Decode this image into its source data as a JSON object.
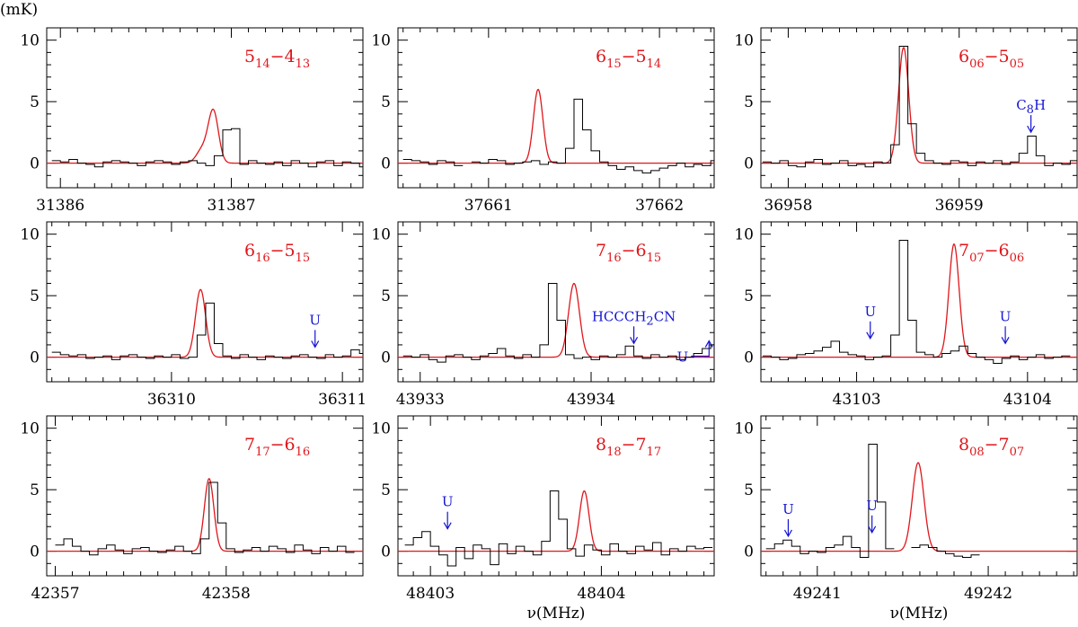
{
  "figure": {
    "yunit_label": "(mK)",
    "xlabel": "ν(MHz)"
  },
  "colors": {
    "observed": "#000000",
    "model": "#e0161b",
    "annotation": "#1414d4",
    "transition_label": "#e0161b",
    "axes": "#000000"
  },
  "chart_data": [
    {
      "type": "line",
      "title": "5_14-4_13",
      "label": {
        "j1": "5",
        "s1": "14",
        "j2": "4",
        "s2": "13"
      },
      "xlim": [
        31385.92,
        31387.77
      ],
      "ylim": [
        -2,
        11
      ],
      "xticks": [
        31386,
        31387
      ],
      "yticks": [
        0,
        5,
        10
      ],
      "xlabel": "",
      "series": [
        {
          "name": "observed",
          "style": "step",
          "start": 31385.95,
          "step": 0.05,
          "values": [
            0.2,
            0.1,
            0.3,
            0.0,
            -0.1,
            -0.3,
            0.1,
            0.2,
            0.1,
            0.0,
            -0.2,
            0.1,
            0.2,
            0.1,
            -0.1,
            0.1,
            0.2,
            0.0,
            -0.2,
            0.6,
            2.7,
            2.8,
            -0.1,
            0.2,
            0.0,
            -0.1,
            0.1,
            -0.2,
            0.2,
            0.0,
            -0.3,
            0.1,
            0.2,
            -0.2,
            0.1,
            0.0,
            -0.3,
            0.1,
            -0.1,
            -0.2
          ]
        },
        {
          "name": "model",
          "style": "line",
          "peaks": [
            {
              "center": 31386.895,
              "height": 4.2,
              "fwhm": 0.07
            },
            {
              "center": 31386.83,
              "height": 1.1,
              "fwhm": 0.08
            }
          ],
          "baseline": 0
        }
      ],
      "annotations": []
    },
    {
      "type": "line",
      "title": "6_15-5_14",
      "label": {
        "j1": "6",
        "s1": "15",
        "j2": "5",
        "s2": "14"
      },
      "xlim": [
        37660.47,
        37662.32
      ],
      "ylim": [
        -2,
        11
      ],
      "xticks": [
        37661,
        37662
      ],
      "yticks": [
        0,
        5,
        10
      ],
      "xlabel": "",
      "series": [
        {
          "name": "observed",
          "style": "step",
          "start": 37660.5,
          "step": 0.05,
          "values": [
            0.3,
            0.2,
            0.1,
            -0.1,
            0.2,
            0.1,
            -0.2,
            null,
            0.1,
            0.0,
            0.3,
            0.2,
            -0.1,
            0.0,
            0.1,
            0.2,
            -0.1,
            0.1,
            0.0,
            1.2,
            5.2,
            2.7,
            1.0,
            0.1,
            -0.2,
            -0.5,
            -0.3,
            -0.6,
            -0.8,
            -0.6,
            -0.4,
            -0.2,
            0.0,
            -0.3,
            -0.1,
            -0.2,
            0.2,
            0.1,
            0.0,
            0.1
          ]
        },
        {
          "name": "model",
          "style": "line",
          "peaks": [
            {
              "center": 37661.29,
              "height": 6.0,
              "fwhm": 0.065
            }
          ],
          "baseline": 0
        }
      ],
      "annotations": []
    },
    {
      "type": "line",
      "title": "6_06-5_05",
      "label": {
        "j1": "6",
        "s1": "06",
        "j2": "5",
        "s2": "05"
      },
      "xlim": [
        36957.84,
        36959.69
      ],
      "ylim": [
        -2,
        11
      ],
      "xticks": [
        36958,
        36959
      ],
      "yticks": [
        0,
        5,
        10
      ],
      "xlabel": "",
      "series": [
        {
          "name": "observed",
          "style": "step",
          "start": 36957.85,
          "step": 0.05,
          "values": [
            0.1,
            0.0,
            0.2,
            -0.2,
            -0.3,
            0.1,
            0.3,
            -0.1,
            0.0,
            0.2,
            -0.2,
            -0.1,
            -0.3,
            0.1,
            0.0,
            1.5,
            9.5,
            3.2,
            0.8,
            0.2,
            0.0,
            -0.1,
            0.2,
            0.1,
            -0.2,
            0.1,
            0.0,
            0.2,
            -0.1,
            0.1,
            0.8,
            2.2,
            0.6,
            -0.2,
            0.0,
            -0.1,
            0.2
          ]
        },
        {
          "name": "model",
          "style": "line",
          "peaks": [
            {
              "center": 36958.675,
              "height": 9.4,
              "fwhm": 0.07
            }
          ],
          "baseline": 0
        }
      ],
      "annotations": [
        {
          "text": "C8H",
          "main": "C",
          "sub": "8",
          "tail": "H",
          "x": 36959.42,
          "y": 2.3,
          "kind": "arrow"
        }
      ]
    },
    {
      "type": "line",
      "title": "6_16-5_15",
      "label": {
        "j1": "6",
        "s1": "16",
        "j2": "5",
        "s2": "15"
      },
      "xlim": [
        36309.27,
        36311.12
      ],
      "ylim": [
        -2,
        11
      ],
      "xticks": [
        36310,
        36311
      ],
      "yticks": [
        0,
        5,
        10
      ],
      "xlabel": "",
      "series": [
        {
          "name": "observed",
          "style": "step",
          "start": 36309.3,
          "step": 0.05,
          "values": [
            0.4,
            0.2,
            0.1,
            0.2,
            -0.1,
            0.0,
            0.1,
            -0.2,
            0.1,
            0.2,
            0.0,
            -0.1,
            0.1,
            0.0,
            0.2,
            -0.1,
            0.0,
            1.8,
            4.4,
            1.1,
            0.1,
            -0.1,
            0.2,
            0.0,
            -0.2,
            0.1,
            0.0,
            -0.1,
            0.1,
            0.2,
            0.0,
            -0.1,
            0.2,
            0.0,
            0.1,
            0.6,
            0.3,
            -0.2,
            0.1
          ]
        },
        {
          "name": "model",
          "style": "line",
          "peaks": [
            {
              "center": 36310.17,
              "height": 5.5,
              "fwhm": 0.07
            }
          ],
          "baseline": 0
        }
      ],
      "annotations": [
        {
          "text": "U",
          "main": "U",
          "x": 36310.84,
          "y": 0.6,
          "kind": "arrow"
        }
      ]
    },
    {
      "type": "line",
      "title": "7_16-6_15",
      "label": {
        "j1": "7",
        "s1": "16",
        "j2": "6",
        "s2": "15"
      },
      "xlim": [
        43932.87,
        43934.72
      ],
      "ylim": [
        -2,
        11
      ],
      "xticks": [
        43933,
        43934
      ],
      "yticks": [
        0,
        5,
        10
      ],
      "xlabel": "",
      "series": [
        {
          "name": "observed",
          "style": "step",
          "start": 43932.9,
          "step": 0.05,
          "values": [
            0.1,
            0.0,
            0.2,
            -0.2,
            -0.4,
            0.1,
            0.2,
            0.0,
            -0.2,
            0.1,
            0.3,
            0.7,
            0.1,
            -0.1,
            0.2,
            0.0,
            1.0,
            6.0,
            3.0,
            0.2,
            -0.1,
            0.0,
            -0.2,
            0.1,
            0.0,
            0.2,
            0.9,
            0.1,
            -0.1,
            0.2,
            0.0,
            0.1,
            -0.2,
            0.0,
            0.3,
            0.7,
            1.0,
            1.4
          ]
        },
        {
          "name": "model",
          "style": "line",
          "peaks": [
            {
              "center": 43933.9,
              "height": 6.0,
              "fwhm": 0.075
            }
          ],
          "baseline": 0
        }
      ],
      "annotations": [
        {
          "text": "HCCCH2CN",
          "main": "HCCCH",
          "sub": "2",
          "tail": "CN",
          "x": 43934.25,
          "y": 0.9,
          "kind": "arrow"
        },
        {
          "text": "U",
          "main": "U",
          "x": 43934.69,
          "y": 1.4,
          "kind": "hook"
        }
      ]
    },
    {
      "type": "line",
      "title": "7_07-6_06",
      "label": {
        "j1": "7",
        "s1": "07",
        "j2": "6",
        "s2": "06"
      },
      "xlim": [
        43102.44,
        43104.29
      ],
      "ylim": [
        -2,
        11
      ],
      "xticks": [
        43103,
        43104
      ],
      "yticks": [
        0,
        5,
        10
      ],
      "xlabel": "",
      "series": [
        {
          "name": "observed",
          "style": "step",
          "start": 43102.45,
          "step": 0.05,
          "values": [
            0.1,
            0.0,
            -0.2,
            -0.1,
            0.2,
            0.3,
            0.5,
            0.8,
            1.3,
            0.4,
            0.2,
            0.1,
            -0.2,
            0.0,
            0.1,
            1.8,
            9.5,
            3.0,
            0.4,
            0.2,
            0.0,
            0.3,
            0.5,
            0.9,
            0.3,
            0.0,
            -0.2,
            -0.5,
            -0.1,
            0.1,
            -0.2,
            0.0,
            0.2,
            -0.1,
            0.0,
            0.1
          ]
        },
        {
          "name": "model",
          "style": "line",
          "peaks": [
            {
              "center": 43103.57,
              "height": 9.2,
              "fwhm": 0.07
            }
          ],
          "baseline": 0
        }
      ],
      "annotations": [
        {
          "text": "U",
          "main": "U",
          "x": 43103.08,
          "y": 1.3,
          "kind": "arrow"
        },
        {
          "text": "U",
          "main": "U",
          "x": 43103.87,
          "y": 0.9,
          "kind": "arrow"
        }
      ]
    },
    {
      "type": "line",
      "title": "7_17-6_16",
      "label": {
        "j1": "7",
        "s1": "17",
        "j2": "6",
        "s2": "16"
      },
      "xlim": [
        42356.95,
        42358.8
      ],
      "ylim": [
        -2,
        11
      ],
      "xticks": [
        42357,
        42358
      ],
      "yticks": [
        0,
        5,
        10
      ],
      "xlabel": "",
      "series": [
        {
          "name": "observed",
          "style": "step",
          "start": 42357.0,
          "step": 0.05,
          "values": [
            0.5,
            1.0,
            0.4,
            0.0,
            -0.3,
            0.2,
            0.5,
            0.1,
            -0.2,
            0.2,
            0.3,
            0.0,
            -0.1,
            0.1,
            0.4,
            0.0,
            -0.2,
            1.0,
            5.6,
            2.3,
            0.2,
            -0.1,
            0.1,
            0.3,
            0.0,
            0.4,
            0.2,
            -0.1,
            0.5,
            0.1,
            -0.2,
            0.3,
            0.0,
            0.4,
            -0.1
          ]
        },
        {
          "name": "model",
          "style": "line",
          "peaks": [
            {
              "center": 42357.9,
              "height": 5.9,
              "fwhm": 0.065
            }
          ],
          "baseline": 0
        }
      ],
      "annotations": []
    },
    {
      "type": "line",
      "title": "8_18-7_17",
      "label": {
        "j1": "8",
        "s1": "18",
        "j2": "7",
        "s2": "17"
      },
      "xlim": [
        48402.81,
        48404.66
      ],
      "ylim": [
        -2,
        11
      ],
      "xticks": [
        48403,
        48404
      ],
      "yticks": [
        0,
        5,
        10
      ],
      "xlabel": "ν(MHz)",
      "series": [
        {
          "name": "observed",
          "style": "step",
          "start": 48402.85,
          "step": 0.05,
          "values": [
            0.5,
            1.1,
            1.6,
            0.4,
            -0.3,
            -1.2,
            0.3,
            -0.6,
            0.5,
            0.2,
            -1.1,
            0.6,
            -0.2,
            0.4,
            0.0,
            -0.3,
            0.8,
            4.9,
            2.6,
            0.2,
            -0.4,
            0.5,
            0.1,
            -0.3,
            0.6,
            0.0,
            -0.2,
            0.4,
            0.1,
            0.7,
            -0.3,
            0.2,
            0.0,
            0.4,
            0.2,
            0.3
          ]
        },
        {
          "name": "model",
          "style": "line",
          "peaks": [
            {
              "center": 48403.9,
              "height": 4.9,
              "fwhm": 0.065
            }
          ],
          "baseline": 0
        }
      ],
      "annotations": [
        {
          "text": "U",
          "main": "U",
          "x": 48403.1,
          "y": 1.6,
          "kind": "arrow"
        }
      ]
    },
    {
      "type": "line",
      "title": "8_08-7_07",
      "label": {
        "j1": "8",
        "s1": "08",
        "j2": "7",
        "s2": "07"
      },
      "xlim": [
        49240.67,
        49242.52
      ],
      "ylim": [
        -2,
        11
      ],
      "xticks": [
        49241,
        49242
      ],
      "yticks": [
        0,
        5,
        10
      ],
      "xlabel": "ν(MHz)",
      "series": [
        {
          "name": "observed",
          "style": "step",
          "start": 49240.7,
          "step": 0.05,
          "values": [
            0.2,
            0.6,
            0.9,
            0.4,
            -0.2,
            0.0,
            -0.1,
            0.3,
            0.5,
            1.2,
            0.3,
            -0.5,
            8.7,
            4.0,
            0.2,
            null,
            null,
            0.3,
            0.5,
            0.3,
            0.0,
            -0.2,
            -0.4,
            -0.5,
            -0.3
          ]
        },
        {
          "name": "model",
          "style": "line",
          "peaks": [
            {
              "center": 49241.59,
              "height": 7.2,
              "fwhm": 0.08
            }
          ],
          "baseline": 0
        }
      ],
      "annotations": [
        {
          "text": "U",
          "main": "U",
          "x": 49240.83,
          "y": 1.0,
          "kind": "arrow"
        },
        {
          "text": "U",
          "main": "U",
          "x": 49241.32,
          "y": 1.3,
          "kind": "arrow"
        }
      ]
    }
  ]
}
